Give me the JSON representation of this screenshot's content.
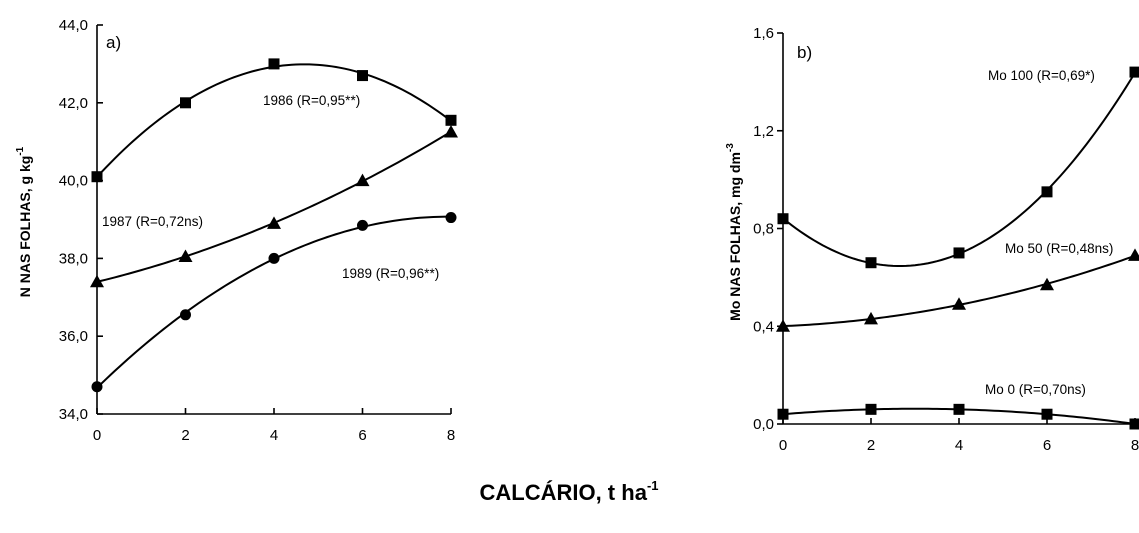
{
  "figure": {
    "xlabel_main": "CALCÁRIO, t ha",
    "xlabel_sup": "-1"
  },
  "chart_data": [
    {
      "type": "line",
      "panel_label": "a)",
      "ylabel_main": "N NAS FOLHAS, g kg",
      "ylabel_sup": "-1",
      "xlim": [
        0,
        8
      ],
      "ylim": [
        34.0,
        44.0
      ],
      "x_ticks": [
        "0",
        "2",
        "4",
        "6",
        "8"
      ],
      "y_ticks": [
        "34,0",
        "36,0",
        "38,0",
        "40,0",
        "42,0",
        "44,0"
      ],
      "x": [
        0,
        2,
        4,
        6,
        8
      ],
      "series": [
        {
          "name": "1986 (R=0,95**)",
          "marker": "square",
          "values": [
            40.1,
            42.0,
            43.0,
            42.7,
            41.55
          ],
          "fit": {
            "degree": 2
          }
        },
        {
          "name": "1987 (R=0,72ns)",
          "marker": "triangle",
          "values": [
            37.4,
            38.05,
            38.9,
            40.0,
            41.25
          ],
          "fit": {
            "degree": 2
          }
        },
        {
          "name": "1989 (R=0,96**)",
          "marker": "circle",
          "values": [
            34.7,
            36.55,
            38.0,
            38.85,
            39.05
          ],
          "fit": {
            "degree": 2
          }
        }
      ]
    },
    {
      "type": "line",
      "panel_label": "b)",
      "ylabel_main": "Mo NAS FOLHAS, mg dm",
      "ylabel_sup": "-3",
      "xlim": [
        0,
        8
      ],
      "ylim": [
        0.0,
        1.6
      ],
      "x_ticks": [
        "0",
        "2",
        "4",
        "6",
        "8"
      ],
      "y_ticks": [
        "0,0",
        "0,4",
        "0,8",
        "1,2",
        "1,6"
      ],
      "x": [
        0,
        2,
        4,
        6,
        8
      ],
      "series": [
        {
          "name": "Mo 100 (R=0,69*)",
          "marker": "square",
          "values": [
            0.84,
            0.66,
            0.7,
            0.95,
            1.44
          ],
          "fit": {
            "degree": 2
          }
        },
        {
          "name": "Mo 50 (R=0,48ns)",
          "marker": "triangle",
          "values": [
            0.4,
            0.43,
            0.49,
            0.57,
            0.69
          ],
          "fit": {
            "degree": 2
          }
        },
        {
          "name": "Mo 0 (R=0,70ns)",
          "marker": "square",
          "values": [
            0.04,
            0.06,
            0.06,
            0.04,
            0.0
          ],
          "fit": {
            "degree": 2
          }
        }
      ]
    }
  ]
}
